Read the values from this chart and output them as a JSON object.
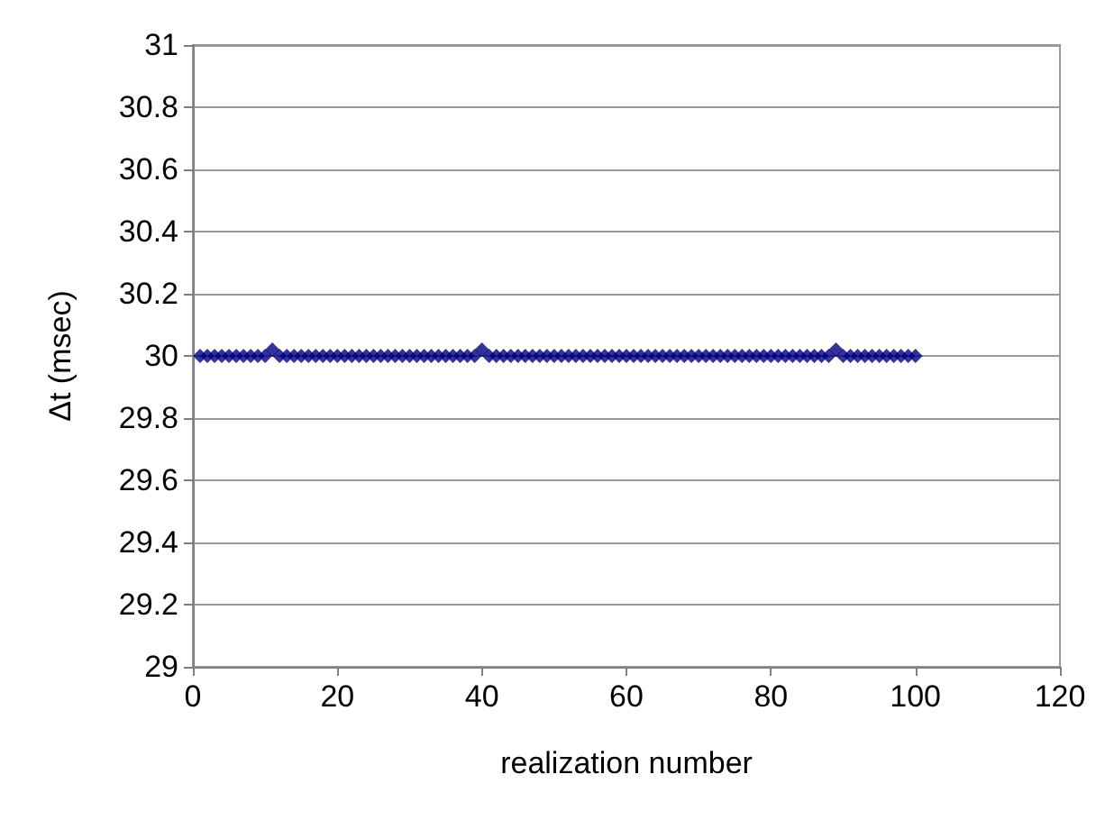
{
  "chart_data": {
    "type": "scatter",
    "xlabel": "realization number",
    "ylabel": "Δt (msec)",
    "x": [
      1,
      2,
      3,
      4,
      5,
      6,
      7,
      8,
      9,
      10,
      11,
      12,
      13,
      14,
      15,
      16,
      17,
      18,
      19,
      20,
      21,
      22,
      23,
      24,
      25,
      26,
      27,
      28,
      29,
      30,
      31,
      32,
      33,
      34,
      35,
      36,
      37,
      38,
      39,
      40,
      41,
      42,
      43,
      44,
      45,
      46,
      47,
      48,
      49,
      50,
      51,
      52,
      53,
      54,
      55,
      56,
      57,
      58,
      59,
      60,
      61,
      62,
      63,
      64,
      65,
      66,
      67,
      68,
      69,
      70,
      71,
      72,
      73,
      74,
      75,
      76,
      77,
      78,
      79,
      80,
      81,
      82,
      83,
      84,
      85,
      86,
      87,
      88,
      89,
      90,
      91,
      92,
      93,
      94,
      95,
      96,
      97,
      98,
      99,
      100
    ],
    "series": [
      {
        "color": "#000080",
        "values": [
          30,
          30,
          30,
          30,
          30,
          30,
          30,
          30,
          30,
          30,
          30.02,
          30,
          30,
          30,
          30,
          30,
          30,
          30,
          30,
          30,
          30,
          30,
          30,
          30,
          30,
          30,
          30,
          30,
          30,
          30,
          30,
          30,
          30,
          30,
          30,
          30,
          30,
          30,
          30,
          30.02,
          30,
          30,
          30,
          30,
          30,
          30,
          30,
          30,
          30,
          30,
          30,
          30,
          30,
          30,
          30,
          30,
          30,
          30,
          30,
          30,
          30,
          30,
          30,
          30,
          30,
          30,
          30,
          30,
          30,
          30,
          30,
          30,
          30,
          30,
          30,
          30,
          30,
          30,
          30,
          30,
          30,
          30,
          30,
          30,
          30,
          30,
          30,
          30,
          30.02,
          30,
          30,
          30,
          30,
          30,
          30,
          30,
          30,
          30,
          30,
          30
        ]
      }
    ],
    "xlim": [
      0,
      120
    ],
    "xticks": [
      0,
      20,
      40,
      60,
      80,
      100,
      120
    ],
    "ylim": [
      29,
      31
    ],
    "yticks": [
      29,
      29.2,
      29.4,
      29.6,
      29.8,
      30,
      30.2,
      30.4,
      30.6,
      30.8,
      31
    ],
    "grid": "y",
    "marker": "diamond"
  }
}
